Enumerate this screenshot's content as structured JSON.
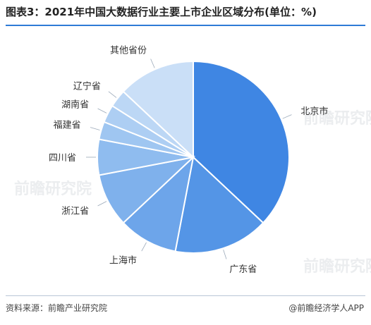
{
  "header": {
    "title": "图表3：2021年中国大数据行业主要上市企业区域分布(单位：%)"
  },
  "footer": {
    "source": "资料来源：前瞻产业研究院",
    "brand": "@前瞻经济学人APP"
  },
  "watermark": "前瞻研究院",
  "chart_data": {
    "type": "pie",
    "start": "12 o'clock",
    "direction": "clockwise",
    "slices": [
      {
        "label": "北京市",
        "value": 37,
        "color": "#3f86e3"
      },
      {
        "label": "广东省",
        "value": 16,
        "color": "#5495e6"
      },
      {
        "label": "上海市",
        "value": 10,
        "color": "#6da5ea"
      },
      {
        "label": "浙江省",
        "value": 9,
        "color": "#7fb1ec"
      },
      {
        "label": "四川省",
        "value": 6,
        "color": "#8fbcef"
      },
      {
        "label": "福建省",
        "value": 3,
        "color": "#9fc6f1"
      },
      {
        "label": "湖南省",
        "value": 3,
        "color": "#adcef3"
      },
      {
        "label": "辽宁省",
        "value": 3,
        "color": "#bcd7f5"
      },
      {
        "label": "其他省份",
        "value": 13,
        "color": "#cadff7"
      }
    ]
  }
}
